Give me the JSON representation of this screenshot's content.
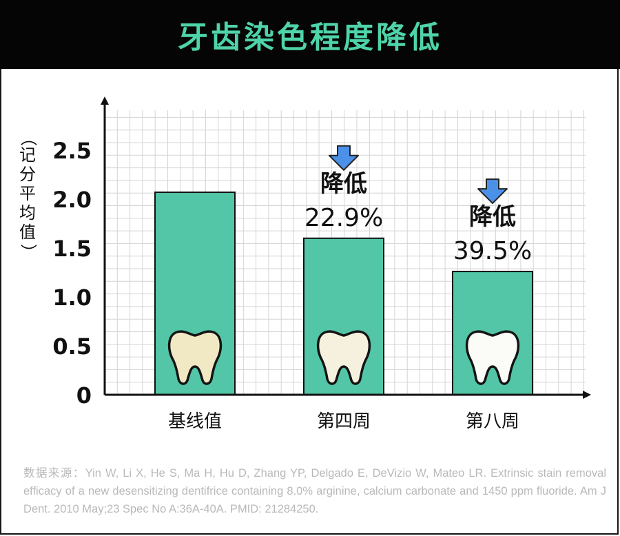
{
  "header": {
    "title": "牙齿染色程度降低"
  },
  "chart_data": {
    "type": "bar",
    "title": "牙齿染色程度降低",
    "ylabel": "（记分平均值）",
    "xlabel": "",
    "categories": [
      "基线值",
      "第四周",
      "第八周"
    ],
    "values": [
      2.07,
      1.6,
      1.26
    ],
    "ylim": [
      0,
      2.9
    ],
    "yticks": [
      "0",
      "0.5",
      "1.0",
      "1.5",
      "2.0",
      "2.5"
    ],
    "grid": true,
    "legend": "none",
    "annotations": [
      {
        "category": "第四周",
        "line1": "降低",
        "line2": "22.9%"
      },
      {
        "category": "第八周",
        "line1": "降低",
        "line2": "39.5%"
      }
    ],
    "colors": {
      "bar": "#52c6a6",
      "bar_stroke": "#111111",
      "grid": "#d4d4d4",
      "axis": "#111111",
      "arrow": "#4c91e8",
      "tooth": [
        "#f1e9c4",
        "#f5f1de",
        "#fbfbf8"
      ]
    }
  },
  "footer": {
    "source": "数据来源：Yin W, Li X, He S, Ma H, Hu D, Zhang YP, Delgado E, DeVizio W, Mateo LR. Extrinsic stain removal efficacy of a new desensitizing dentifrice containing 8.0% arginine, calcium carbonate and 1450 ppm fluoride. Am J Dent. 2010 May;23 Spec No A:36A-40A. PMID: 21284250."
  }
}
